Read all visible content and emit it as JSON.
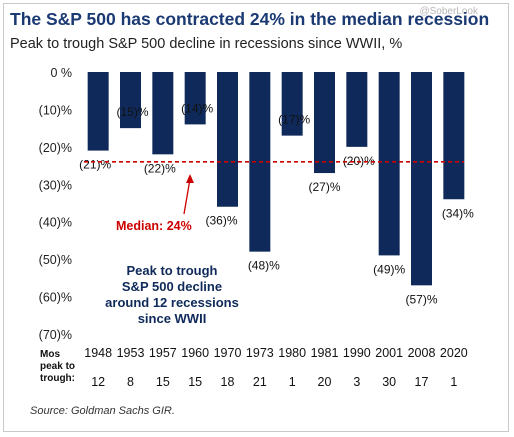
{
  "watermark": "@SoberLook",
  "title": "The S&P 500 has contracted 24% in the median recession",
  "subtitle": "Peak to trough S&P 500 decline in recessions since WWII, %",
  "source": "Source: Goldman Sachs GIR.",
  "colors": {
    "title": "#1b3a73",
    "bar": "#0f2a5a",
    "median_line": "#cc0000",
    "median_text": "#cc0000",
    "annotation_text": "#0f2a5a",
    "arrow": "#cc0000"
  },
  "chart_data": {
    "type": "bar",
    "categories": [
      "1948",
      "1953",
      "1957",
      "1960",
      "1970",
      "1973",
      "1980",
      "1981",
      "1990",
      "2001",
      "2008",
      "2020"
    ],
    "values": [
      -21,
      -15,
      -22,
      -14,
      -36,
      -48,
      -17,
      -27,
      -20,
      -49,
      -57,
      -34
    ],
    "value_labels": [
      "(21)%",
      "(15)%",
      "(22)%",
      "(14)%",
      "(36)%",
      "(48)%",
      "(17)%",
      "(27)%",
      "(20)%",
      "(49)%",
      "(57)%",
      "(34)%"
    ],
    "ylim": [
      -70,
      0
    ],
    "y_ticks": [
      0,
      -10,
      -20,
      -30,
      -40,
      -50,
      -60,
      -70
    ],
    "y_tick_labels": [
      "0 %",
      "(10)%",
      "(20)%",
      "(30)%",
      "(40)%",
      "(50)%",
      "(60)%",
      "(70)%"
    ],
    "median": -24,
    "median_label": "Median: 24%",
    "annotation_lines": [
      "Peak to trough",
      "S&P 500 decline",
      "around 12 recessions",
      "since WWII"
    ],
    "months_label_lines": [
      "Mos",
      "peak to",
      "trough:"
    ],
    "months_peak_to_trough": [
      "12",
      "8",
      "15",
      "15",
      "18",
      "21",
      "1",
      "20",
      "3",
      "30",
      "17",
      "1"
    ],
    "grid": false
  }
}
